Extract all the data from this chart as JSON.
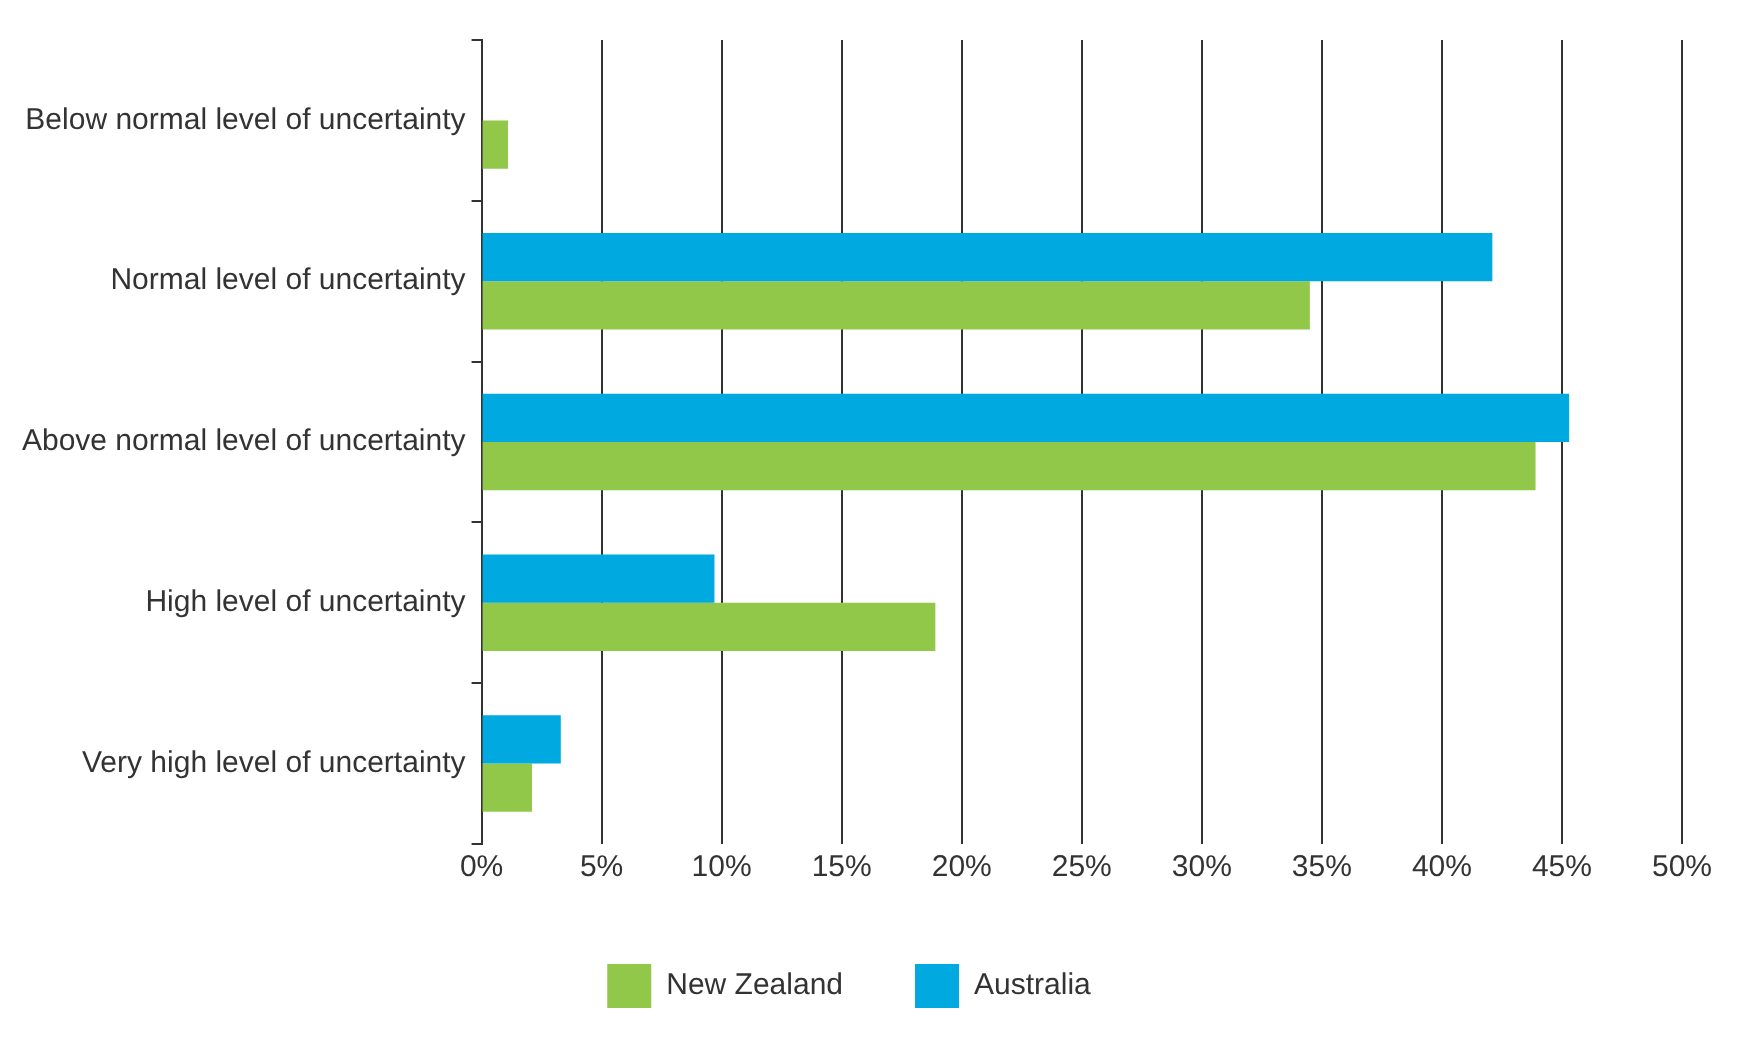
{
  "chart_data": {
    "type": "bar",
    "orientation": "horizontal",
    "categories": [
      "Below normal level of uncertainty",
      "Normal level of uncertainty",
      "Above normal level of uncertainty",
      "High level of uncertainty",
      "Very high level of uncertainty"
    ],
    "series": [
      {
        "name": "New Zealand",
        "color": "#92c84a",
        "values": [
          1.1,
          34.5,
          43.9,
          18.9,
          2.1
        ]
      },
      {
        "name": "Australia",
        "color": "#00a9e0",
        "values": [
          null,
          42.1,
          45.3,
          9.7,
          3.3
        ]
      }
    ],
    "xlim": [
      0,
      50
    ],
    "xticks": [
      {
        "value": 0,
        "label": "0%"
      },
      {
        "value": 5,
        "label": "5%"
      },
      {
        "value": 10,
        "label": "10%"
      },
      {
        "value": 15,
        "label": "15%"
      },
      {
        "value": 20,
        "label": "20%"
      },
      {
        "value": 25,
        "label": "25%"
      },
      {
        "value": 30,
        "label": "30%"
      },
      {
        "value": 35,
        "label": "35%"
      },
      {
        "value": 40,
        "label": "40%"
      },
      {
        "value": 45,
        "label": "45%"
      },
      {
        "value": 50,
        "label": "50%"
      }
    ],
    "grid": "x",
    "legend": "bottom"
  }
}
